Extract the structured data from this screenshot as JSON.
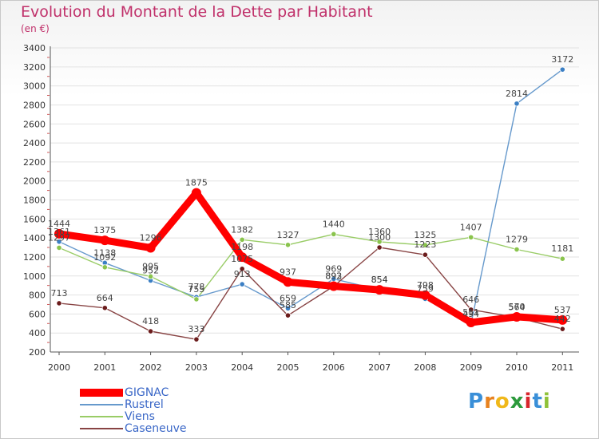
{
  "header": {
    "title": "Evolution du Montant de la Dette par Habitant",
    "subtitle": "(en €)"
  },
  "brand": {
    "letters": [
      "P",
      "r",
      "o",
      "x",
      "i",
      "t",
      "i"
    ],
    "colors": [
      "#3a8fd8",
      "#e8821e",
      "#f0b81a",
      "#2c9a3c",
      "#d8252c",
      "#3a8fd8",
      "#8fc23a"
    ]
  },
  "chart_data": {
    "type": "line",
    "x": [
      "2000",
      "2001",
      "2002",
      "2003",
      "2004",
      "2005",
      "2006",
      "2007",
      "2008",
      "2009",
      "2010",
      "2011"
    ],
    "ylim": [
      200,
      3400
    ],
    "yticks": [
      "200",
      "400",
      "600",
      "800",
      "1000",
      "1200",
      "1400",
      "1600",
      "1800",
      "2000",
      "2200",
      "2400",
      "2600",
      "2800",
      "3000",
      "3200",
      "3400"
    ],
    "grid": "horizontal",
    "legend_position": "bottom-left",
    "series": [
      {
        "name": "Rustrel",
        "color": "#6699cc",
        "marker": "#3b7fc4",
        "values": [
          1361,
          1138,
          952,
          778,
          913,
          659,
          969,
          854,
          759,
          494,
          2814,
          3172
        ],
        "labels": [
          "1361",
          "1138",
          "952",
          "778",
          "913",
          "659",
          "969",
          "854",
          "759",
          "494",
          "2814",
          "3172"
        ]
      },
      {
        "name": "Viens",
        "color": "#99cc66",
        "marker": "#8ac44d",
        "values": [
          1297,
          1092,
          995,
          755,
          1382,
          1327,
          1440,
          1360,
          1325,
          1407,
          1279,
          1181
        ],
        "labels": [
          "1297",
          "1092",
          "995",
          "755",
          "1382",
          "1327",
          "1440",
          "1360",
          "1325",
          "1407",
          "1279",
          "1181"
        ]
      },
      {
        "name": "Caseneuve",
        "color": "#884444",
        "marker": "#6b1c1c",
        "values": [
          713,
          664,
          418,
          333,
          1075,
          585,
          892,
          1300,
          1223,
          646,
          564,
          442
        ],
        "labels": [
          "713",
          "664",
          "418",
          "333",
          "1075",
          "585",
          "892",
          "1300",
          "1223",
          "646",
          "564",
          "442"
        ]
      },
      {
        "name": "GIGNAC",
        "color": "#ff0000",
        "marker": "#ff0000",
        "values": [
          1444,
          1375,
          1296,
          1875,
          1198,
          937,
          893,
          854,
          798,
          511,
          570,
          537
        ],
        "labels": [
          "1444",
          "1375",
          "1296",
          "1875",
          "1198",
          "937",
          "893",
          "854",
          "798",
          "511",
          "570",
          "537"
        ]
      }
    ],
    "legend": [
      "GIGNAC",
      "Rustrel",
      "Viens",
      "Caseneuve"
    ]
  }
}
